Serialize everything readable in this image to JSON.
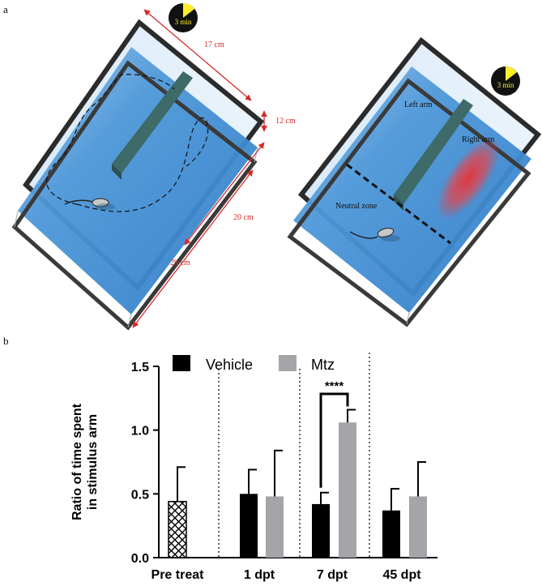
{
  "panel_a": {
    "label": "a",
    "timer_label": "3 min",
    "dimensions": {
      "length": "17 cm",
      "height": "12 cm",
      "arm": "20 cm",
      "width": "29 cm"
    },
    "zones": {
      "left_arm": "Left arm",
      "right_arm": "Right arm",
      "neutral_zone": "Neutral zone"
    },
    "colors": {
      "water": "#3f8fd6",
      "frame": "#2b2b2b",
      "divider": "#3e6a68",
      "dimension": "#d62a2a",
      "stimulus": "#e43b44",
      "timer_wedge": "#ffef2a"
    }
  },
  "panel_b": {
    "label": "b",
    "significance": "****"
  },
  "chart_data": {
    "type": "bar",
    "categories": [
      "Pre treat",
      "1 dpt",
      "7 dpt",
      "45 dpt"
    ],
    "ylabel": "Ratio of time spent in stimulus arm",
    "ylabel_lines": [
      "Ratio of time spent",
      "in stimulus arm"
    ],
    "ylim": [
      0,
      1.5
    ],
    "yticks": [
      "0.0",
      "0.5",
      "1.0",
      "1.5"
    ],
    "legend_position": "top",
    "series": [
      {
        "name": "Vehicle",
        "color": "#000000",
        "values": [
          null,
          0.5,
          0.42,
          0.37
        ],
        "errors": [
          null,
          0.19,
          0.09,
          0.17
        ]
      },
      {
        "name": "Mtz",
        "color": "#a3a5a8",
        "values": [
          null,
          0.48,
          1.06,
          0.48
        ],
        "errors": [
          null,
          0.36,
          0.1,
          0.27
        ]
      }
    ],
    "pretreat": {
      "value": 0.44,
      "error": 0.27,
      "pattern": "crosshatch"
    },
    "significance": {
      "category": "7 dpt",
      "label": "****"
    }
  }
}
